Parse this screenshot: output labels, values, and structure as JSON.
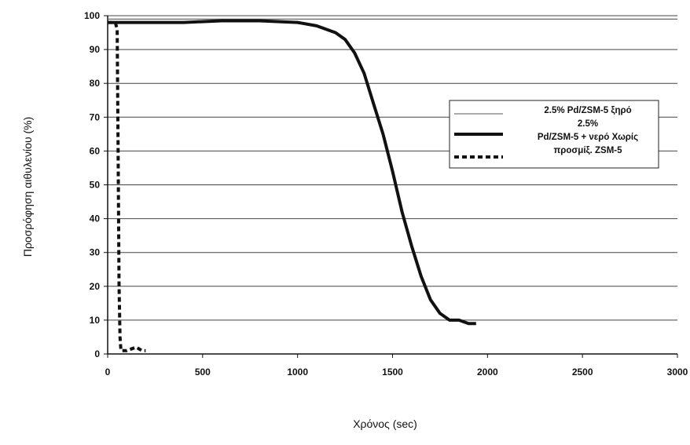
{
  "chart_data": {
    "type": "line",
    "title": "",
    "xlabel": "Χρόνος (sec)",
    "ylabel": "Προσρόφηση αιθυλενίου (%)",
    "xlim": [
      0,
      3000
    ],
    "ylim": [
      0,
      100
    ],
    "x_ticks": [
      0,
      500,
      1000,
      1500,
      2000,
      2500,
      3000
    ],
    "x_tick_labels": [
      "0",
      "500",
      "1000",
      "1500",
      "2000",
      "2500",
      "3000"
    ],
    "y_ticks": [
      0,
      10,
      20,
      30,
      40,
      50,
      60,
      70,
      80,
      90,
      100
    ],
    "y_tick_labels": [
      "0",
      "10",
      "20",
      "30",
      "40",
      "50",
      "60",
      "70",
      "80",
      "90",
      "100"
    ],
    "grid": "horizontal",
    "legend_position": "right",
    "series": [
      {
        "name": "2.5% Pd/ZSM-5 ξηρό",
        "style": "thin",
        "color": "#555555",
        "x": [
          0,
          500,
          1000,
          1500,
          2000,
          2500,
          3000
        ],
        "y": [
          99,
          99,
          99,
          99,
          99,
          99,
          99
        ]
      },
      {
        "name": "2.5% Pd/ZSM-5 + νερό",
        "style": "thick",
        "color": "#111111",
        "x": [
          0,
          200,
          400,
          600,
          800,
          1000,
          1100,
          1200,
          1250,
          1300,
          1350,
          1400,
          1450,
          1500,
          1550,
          1600,
          1650,
          1700,
          1750,
          1800,
          1850,
          1900,
          1940
        ],
        "y": [
          98,
          98,
          98,
          98.5,
          98.5,
          98,
          97,
          95,
          93,
          89,
          83,
          74,
          65,
          54,
          42,
          32,
          23,
          16,
          12,
          10,
          10,
          9,
          9
        ]
      },
      {
        "name": "Χωρίς προσμίξ. ZSM-5",
        "style": "dashed",
        "color": "#111111",
        "x": [
          0,
          40,
          50,
          55,
          60,
          65,
          70,
          100,
          150,
          180,
          200
        ],
        "y": [
          98,
          98,
          96,
          60,
          20,
          5,
          1,
          1,
          2,
          1,
          1
        ]
      }
    ]
  },
  "legend_lines": [
    "2.5% Pd/ZSM-5 ξηρό",
    "2.5%",
    "Pd/ZSM-5 + νερό Χωρίς",
    "προσμίξ. ZSM-5"
  ]
}
